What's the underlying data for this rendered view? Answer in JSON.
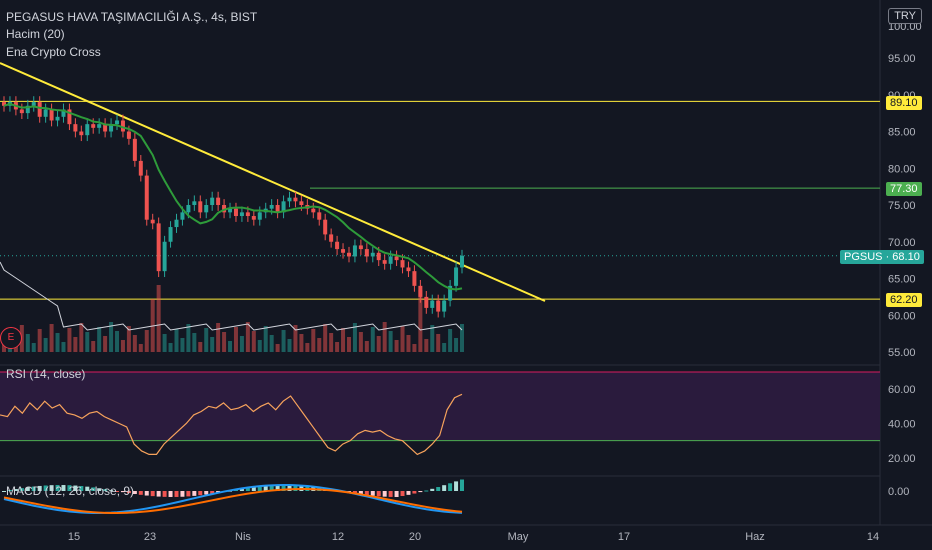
{
  "header": {
    "title": "PEGASUS HAVA TAŞIMACILIĞI A.Ş., 4s, BIST",
    "volume_label": "Hacim (20)",
    "indicator_label": "Ena Crypto Cross",
    "currency": "TRY"
  },
  "price_axis": {
    "ticks": [
      "95.00",
      "90.00",
      "85.00",
      "80.00",
      "75.00",
      "70.00",
      "65.00",
      "60.00",
      "55.00"
    ],
    "top_tick": "100.00"
  },
  "price_tags": {
    "upper_line": "89.10",
    "green_line": "77.30",
    "current": "PGSUS · 68.10",
    "lower_line": "62.20"
  },
  "rsi": {
    "label": "RSI (14, close)",
    "ticks": [
      "60.00",
      "40.00",
      "20.00"
    ]
  },
  "macd": {
    "label": "MACD (12, 26, close, 9)",
    "ticks": [
      "0.00"
    ]
  },
  "time_axis": {
    "ticks": [
      "15",
      "23",
      "Nis",
      "12",
      "20",
      "May",
      "17",
      "Haz",
      "14"
    ]
  },
  "badge": "E",
  "colors": {
    "bg": "#131722",
    "up": "#26a69a",
    "down": "#ef5350",
    "yellow": "#ffeb3b",
    "green": "#4caf50",
    "rsi": "#f7a35c",
    "rsi_band": "#2a1b3d"
  },
  "chart_data": {
    "type": "line",
    "close": [
      88.5,
      89,
      88,
      87.5,
      88.5,
      89,
      87,
      88,
      86.5,
      87,
      88,
      86,
      85,
      84.5,
      86,
      85.5,
      86,
      85,
      86,
      86.5,
      85,
      84,
      81,
      79,
      73,
      72.5,
      66,
      70,
      72,
      73,
      74,
      75,
      75.5,
      74,
      75,
      76,
      75,
      74,
      74.5,
      73.5,
      74,
      73.5,
      73,
      74,
      74.5,
      75,
      74,
      75.5,
      76,
      75.5,
      75,
      74.5,
      74,
      73,
      71,
      70,
      69,
      68.5,
      68,
      69.5,
      69,
      68,
      68.5,
      67.5,
      67,
      68,
      67.5,
      66.5,
      66,
      64,
      62.5,
      61,
      62,
      60.5,
      62,
      64,
      66.5,
      68.1
    ],
    "rsi": [
      45,
      44,
      50,
      46,
      52,
      48,
      53,
      49,
      51,
      46,
      45,
      43,
      46,
      47,
      44,
      42,
      40,
      38,
      28,
      24,
      22,
      22,
      28,
      32,
      36,
      40,
      45,
      47,
      50,
      49,
      52,
      48,
      49,
      51,
      47,
      50,
      52,
      48,
      53,
      56,
      50,
      44,
      38,
      32,
      26,
      24,
      28,
      30,
      34,
      36,
      35,
      36,
      33,
      31,
      30,
      26,
      22,
      24,
      28,
      33,
      48,
      55,
      57
    ],
    "ylim": [
      55,
      100
    ]
  }
}
